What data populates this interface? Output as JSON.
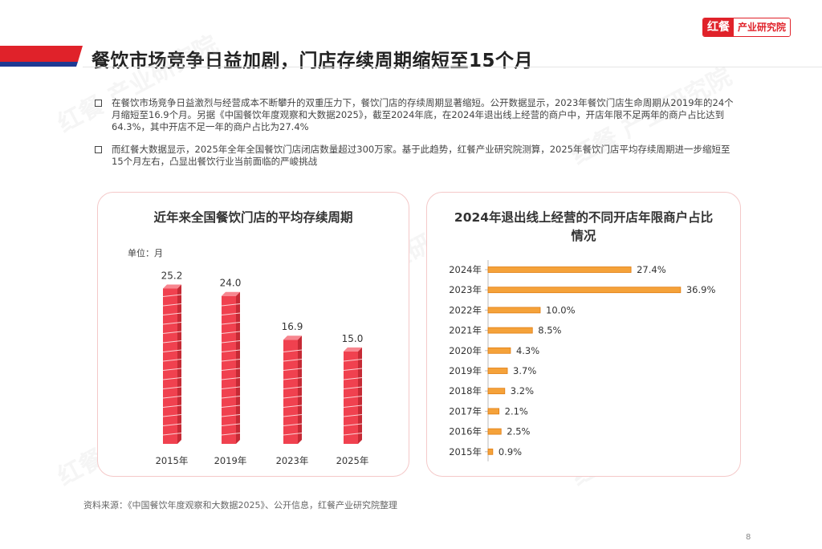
{
  "header": {
    "title": "餐饮市场竞争日益加剧，门店存续周期缩短至15个月",
    "logo_mark": "红餐",
    "logo_text": "产业研究院",
    "accent_red": "#e0222a",
    "accent_blue": "#1f3a93"
  },
  "bullets": [
    "在餐饮市场竞争日益激烈与经营成本不断攀升的双重压力下，餐饮门店的存续周期显著缩短。公开数据显示，2023年餐饮门店生命周期从2019年的24个月缩短至16.9个月。另据《中国餐饮年度观察和大数据2025》，截至2024年底，在2024年退出线上经营的商户中，开店年限不足两年的商户占比达到64.3%，其中开店不足一年的商户占比为27.4%",
    "而红餐大数据显示，2025年全年全国餐饮门店闭店数量超过300万家。基于此趋势，红餐产业研究院测算，2025年餐饮门店平均存续周期进一步缩短至15个月左右，凸显出餐饮行业当前面临的严峻挑战"
  ],
  "chart_data": [
    {
      "type": "bar",
      "title": "近年来全国餐饮门店的平均存续周期",
      "unit_label": "单位：月",
      "categories": [
        "2015年",
        "2019年",
        "2023年",
        "2025年"
      ],
      "values": [
        25.2,
        24.0,
        16.9,
        15.0
      ],
      "value_labels": [
        "25.2",
        "24.0",
        "16.9",
        "15.0"
      ],
      "ylim": [
        0,
        28
      ],
      "grid": false,
      "color": "#f0414f"
    },
    {
      "type": "bar",
      "orientation": "horizontal",
      "title": "2024年退出线上经营的不同开店年限商户占比情况",
      "categories": [
        "2024年",
        "2023年",
        "2022年",
        "2021年",
        "2020年",
        "2019年",
        "2018年",
        "2017年",
        "2016年",
        "2015年"
      ],
      "values": [
        27.4,
        36.9,
        10.0,
        8.5,
        4.3,
        3.7,
        3.2,
        2.1,
        2.5,
        0.9
      ],
      "value_labels": [
        "27.4%",
        "36.9%",
        "10.0%",
        "8.5%",
        "4.3%",
        "3.7%",
        "3.2%",
        "2.1%",
        "2.5%",
        "0.9%"
      ],
      "xlim": [
        0,
        40
      ],
      "grid": false,
      "color": "#f5a23a"
    }
  ],
  "footer": {
    "source": "资料来源：《中国餐饮年度观察和大数据2025》、公开信息，红餐产业研究院整理",
    "page": "8"
  }
}
